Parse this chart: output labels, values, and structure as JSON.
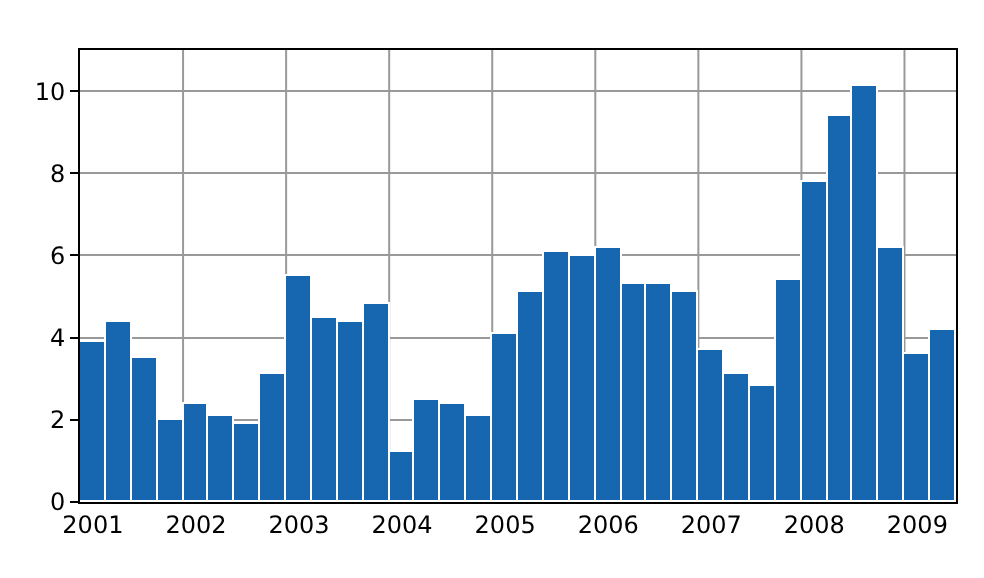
{
  "chart_data": {
    "type": "bar",
    "categories": [
      "2001",
      null,
      null,
      null,
      "2002",
      null,
      null,
      null,
      "2003",
      null,
      null,
      null,
      "2004",
      null,
      null,
      null,
      "2005",
      null,
      null,
      null,
      "2006",
      null,
      null,
      null,
      "2007",
      null,
      null,
      null,
      "2008",
      null,
      null,
      null,
      "2009",
      null
    ],
    "values": [
      3.9,
      4.4,
      3.5,
      2.0,
      2.4,
      2.1,
      1.9,
      3.1,
      5.5,
      4.5,
      4.4,
      4.8,
      1.2,
      2.5,
      2.4,
      2.1,
      4.1,
      5.1,
      6.1,
      6.0,
      6.2,
      5.3,
      5.3,
      5.1,
      3.7,
      3.1,
      2.8,
      5.4,
      7.8,
      9.4,
      10.1,
      6.2,
      3.6,
      4.2
    ],
    "color": "#1767b0",
    "ylim": [
      0,
      11
    ],
    "yticks": [
      0,
      2,
      4,
      6,
      8,
      10
    ],
    "grid": true,
    "legend": false
  }
}
